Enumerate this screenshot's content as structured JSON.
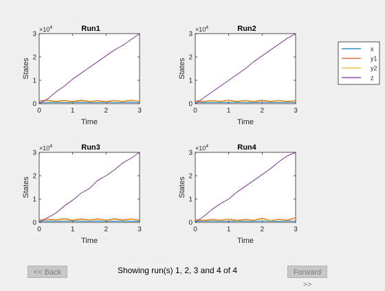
{
  "window": {
    "background": "#f0f0f0"
  },
  "navigation": {
    "back_label": "<< Back",
    "forward_label": "Forward >>",
    "status_text": "Showing run(s) 1, 2, 3 and 4 of 4"
  },
  "chart_data": [
    {
      "type": "line",
      "title": "Run1",
      "xlabel": "Time",
      "ylabel": "States",
      "xlim": [
        0,
        3
      ],
      "ylim": [
        0,
        3
      ],
      "x_ticks": [
        "0",
        "1",
        "2",
        "3"
      ],
      "y_ticks": [
        "0",
        "1",
        "2",
        "3"
      ],
      "y_exponent_base": "×10",
      "y_exponent": "4",
      "x": [
        0,
        0.25,
        0.5,
        0.75,
        1,
        1.25,
        1.5,
        1.75,
        2,
        2.25,
        2.5,
        2.75,
        3
      ],
      "series": [
        {
          "name": "x",
          "color": "#0072bd",
          "values": [
            0.05,
            0.05,
            0.06,
            0.05,
            0.05,
            0.06,
            0.05,
            0.05,
            0.06,
            0.05,
            0.05,
            0.06,
            0.05
          ]
        },
        {
          "name": "y1",
          "color": "#d95319",
          "values": [
            0.12,
            0.15,
            0.1,
            0.14,
            0.09,
            0.15,
            0.1,
            0.13,
            0.09,
            0.14,
            0.1,
            0.15,
            0.1
          ]
        },
        {
          "name": "y2",
          "color": "#edb120",
          "values": [
            0.1,
            0.13,
            0.08,
            0.12,
            0.07,
            0.12,
            0.08,
            0.11,
            0.07,
            0.12,
            0.08,
            0.13,
            0.09
          ]
        },
        {
          "name": "z",
          "color": "#7e2f8e",
          "values": [
            0,
            0.2,
            0.5,
            0.75,
            1.05,
            1.3,
            1.55,
            1.8,
            2.05,
            2.3,
            2.5,
            2.75,
            3
          ]
        }
      ]
    },
    {
      "type": "line",
      "title": "Run2",
      "xlabel": "Time",
      "ylabel": "States",
      "xlim": [
        0,
        3
      ],
      "ylim": [
        0,
        3
      ],
      "x_ticks": [
        "0",
        "1",
        "2",
        "3"
      ],
      "y_ticks": [
        "0",
        "1",
        "2",
        "3"
      ],
      "y_exponent_base": "×10",
      "y_exponent": "4",
      "x": [
        0,
        0.25,
        0.5,
        0.75,
        1,
        1.25,
        1.5,
        1.75,
        2,
        2.25,
        2.5,
        2.75,
        3
      ],
      "series": [
        {
          "name": "x",
          "color": "#0072bd",
          "values": [
            0.05,
            0.05,
            0.06,
            0.05,
            0.05,
            0.06,
            0.05,
            0.05,
            0.06,
            0.05,
            0.05,
            0.06,
            0.05
          ]
        },
        {
          "name": "y1",
          "color": "#d95319",
          "values": [
            0.13,
            0.1,
            0.14,
            0.1,
            0.15,
            0.1,
            0.14,
            0.09,
            0.15,
            0.1,
            0.14,
            0.1,
            0.13
          ]
        },
        {
          "name": "y2",
          "color": "#edb120",
          "values": [
            0.1,
            0.08,
            0.12,
            0.08,
            0.13,
            0.08,
            0.12,
            0.07,
            0.12,
            0.08,
            0.12,
            0.08,
            0.11
          ]
        },
        {
          "name": "z",
          "color": "#7e2f8e",
          "values": [
            0,
            0.25,
            0.5,
            0.75,
            1.0,
            1.25,
            1.5,
            1.8,
            2.05,
            2.3,
            2.55,
            2.8,
            3
          ]
        }
      ]
    },
    {
      "type": "line",
      "title": "Run3",
      "xlabel": "Time",
      "ylabel": "States",
      "xlim": [
        0,
        3
      ],
      "ylim": [
        0,
        3
      ],
      "x_ticks": [
        "0",
        "1",
        "2",
        "3"
      ],
      "y_ticks": [
        "0",
        "1",
        "2",
        "3"
      ],
      "y_exponent_base": "×10",
      "y_exponent": "4",
      "x": [
        0,
        0.25,
        0.5,
        0.75,
        1,
        1.25,
        1.5,
        1.75,
        2,
        2.25,
        2.5,
        2.75,
        3
      ],
      "series": [
        {
          "name": "x",
          "color": "#0072bd",
          "values": [
            0.05,
            0.06,
            0.05,
            0.05,
            0.06,
            0.05,
            0.05,
            0.06,
            0.05,
            0.05,
            0.06,
            0.05,
            0.05
          ]
        },
        {
          "name": "y1",
          "color": "#d95319",
          "values": [
            0.1,
            0.14,
            0.11,
            0.16,
            0.1,
            0.15,
            0.11,
            0.15,
            0.1,
            0.16,
            0.11,
            0.15,
            0.1
          ]
        },
        {
          "name": "y2",
          "color": "#edb120",
          "values": [
            0.08,
            0.12,
            0.09,
            0.13,
            0.08,
            0.12,
            0.09,
            0.13,
            0.08,
            0.13,
            0.09,
            0.13,
            0.08
          ]
        },
        {
          "name": "z",
          "color": "#7e2f8e",
          "values": [
            0,
            0.2,
            0.4,
            0.7,
            0.95,
            1.25,
            1.45,
            1.8,
            2.0,
            2.25,
            2.55,
            2.75,
            3
          ]
        }
      ]
    },
    {
      "type": "line",
      "title": "Run4",
      "xlabel": "Time",
      "ylabel": "States",
      "xlim": [
        0,
        3
      ],
      "ylim": [
        0,
        3
      ],
      "x_ticks": [
        "0",
        "1",
        "2",
        "3"
      ],
      "y_ticks": [
        "0",
        "1",
        "2",
        "3"
      ],
      "y_exponent_base": "×10",
      "y_exponent": "4",
      "x": [
        0,
        0.25,
        0.5,
        0.75,
        1,
        1.25,
        1.5,
        1.75,
        2,
        2.25,
        2.5,
        2.75,
        3
      ],
      "series": [
        {
          "name": "x",
          "color": "#0072bd",
          "values": [
            0.05,
            0.05,
            0.06,
            0.05,
            0.05,
            0.06,
            0.05,
            0.05,
            0.06,
            0.05,
            0.05,
            0.06,
            0.05
          ]
        },
        {
          "name": "y1",
          "color": "#d95319",
          "values": [
            0.12,
            0.09,
            0.13,
            0.1,
            0.14,
            0.09,
            0.13,
            0.1,
            0.18,
            0.08,
            0.14,
            0.1,
            0.2
          ]
        },
        {
          "name": "y2",
          "color": "#edb120",
          "values": [
            0.1,
            0.07,
            0.11,
            0.08,
            0.12,
            0.07,
            0.11,
            0.08,
            0.15,
            0.07,
            0.12,
            0.08,
            0.17
          ]
        },
        {
          "name": "z",
          "color": "#7e2f8e",
          "values": [
            0,
            0.25,
            0.55,
            0.8,
            1.0,
            1.3,
            1.55,
            1.8,
            2.05,
            2.3,
            2.6,
            2.85,
            3
          ]
        }
      ]
    }
  ],
  "legend": {
    "items": [
      {
        "label": "x",
        "color": "#0072bd"
      },
      {
        "label": "y1",
        "color": "#d95319"
      },
      {
        "label": "y2",
        "color": "#edb120"
      },
      {
        "label": "z",
        "color": "#7e2f8e"
      }
    ]
  }
}
